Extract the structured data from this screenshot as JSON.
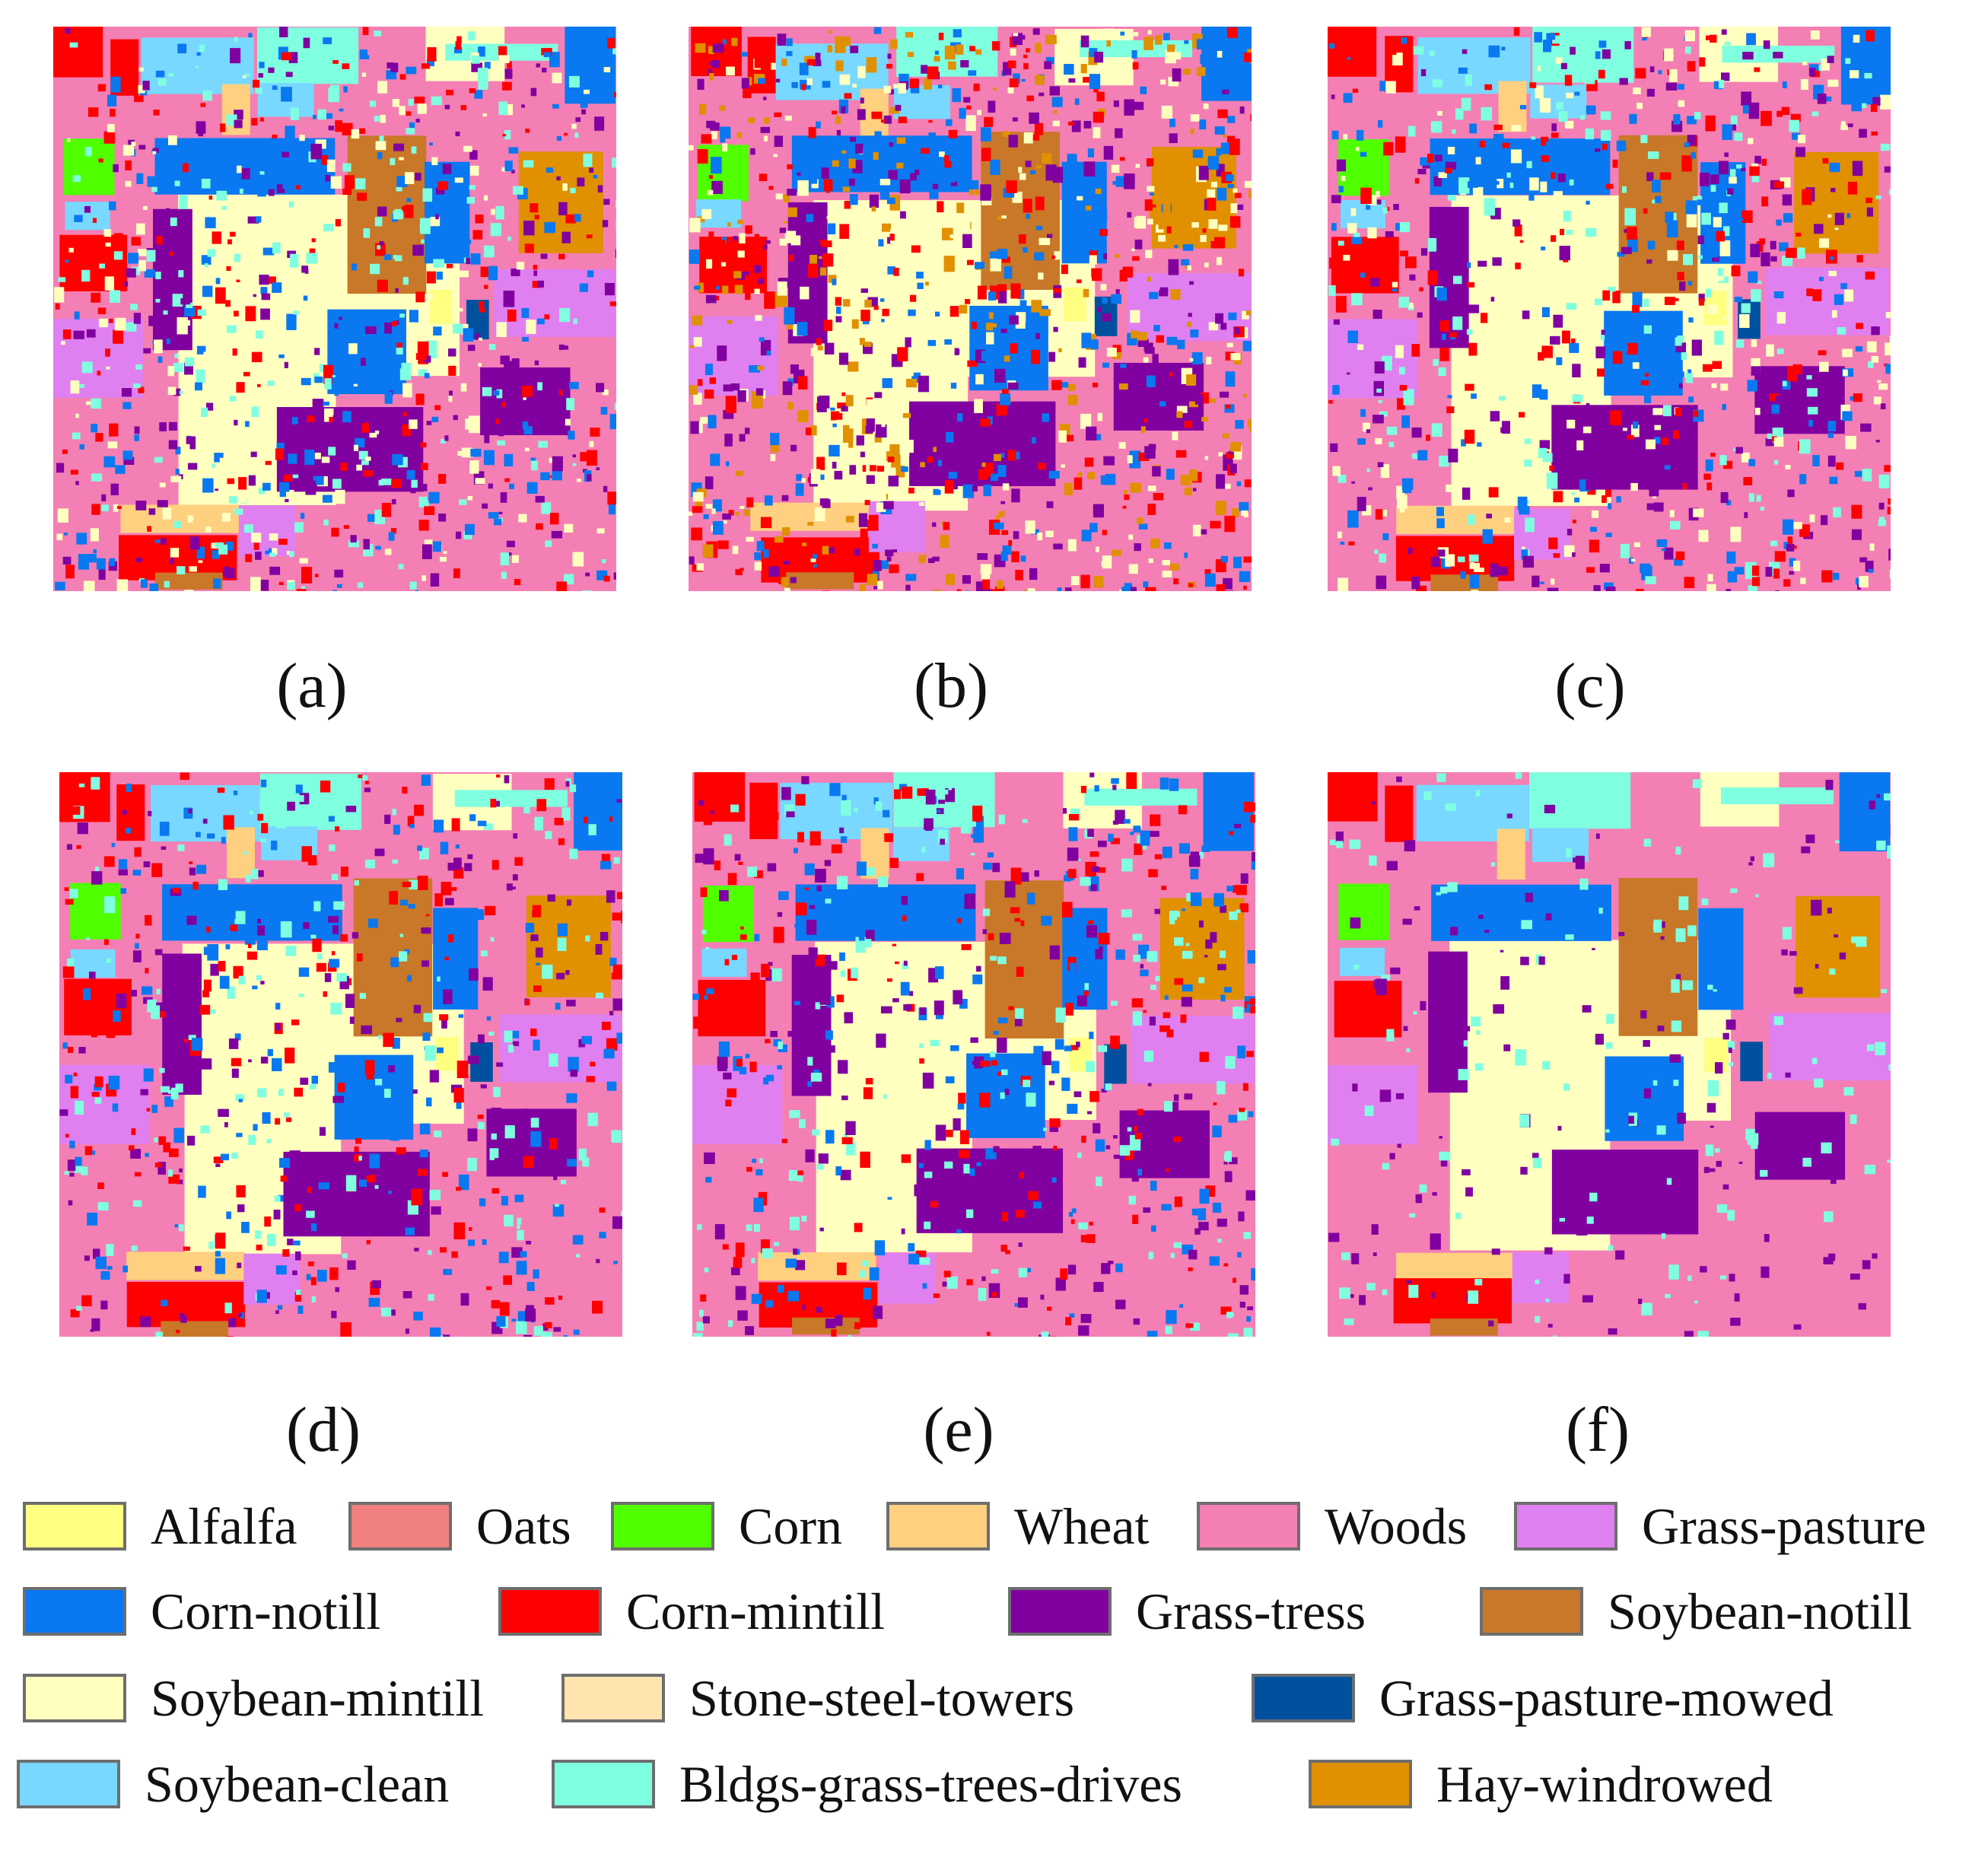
{
  "figure": {
    "panels": [
      {
        "id": "a",
        "caption": "(a)"
      },
      {
        "id": "b",
        "caption": "(b)"
      },
      {
        "id": "c",
        "caption": "(c)"
      },
      {
        "id": "d",
        "caption": "(d)"
      },
      {
        "id": "e",
        "caption": "(e)"
      },
      {
        "id": "f",
        "caption": "(f)"
      }
    ]
  },
  "legend": [
    {
      "label": "Alfalfa",
      "color": "#ffff80"
    },
    {
      "label": "Oats",
      "color": "#f08080"
    },
    {
      "label": "Corn",
      "color": "#50ff00"
    },
    {
      "label": "Wheat",
      "color": "#ffd080"
    },
    {
      "label": "Woods",
      "color": "#f47fb4"
    },
    {
      "label": "Grass-pasture",
      "color": "#e080f0"
    },
    {
      "label": "Corn-notill",
      "color": "#0a78f0"
    },
    {
      "label": "Corn-mintill",
      "color": "#ff0000"
    },
    {
      "label": "Grass-tress",
      "color": "#8000a0"
    },
    {
      "label": "Soybean-notill",
      "color": "#c87828"
    },
    {
      "label": "Soybean-mintill",
      "color": "#ffffc0"
    },
    {
      "label": "Stone-steel-towers",
      "color": "#ffe4b0"
    },
    {
      "label": "Grass-pasture-mowed",
      "color": "#0050a0"
    },
    {
      "label": "Soybean-clean",
      "color": "#78d8ff"
    },
    {
      "label": "Bldgs-grass-trees-drives",
      "color": "#80ffe0"
    },
    {
      "label": "Hay-windrowed",
      "color": "#e09000"
    }
  ]
}
